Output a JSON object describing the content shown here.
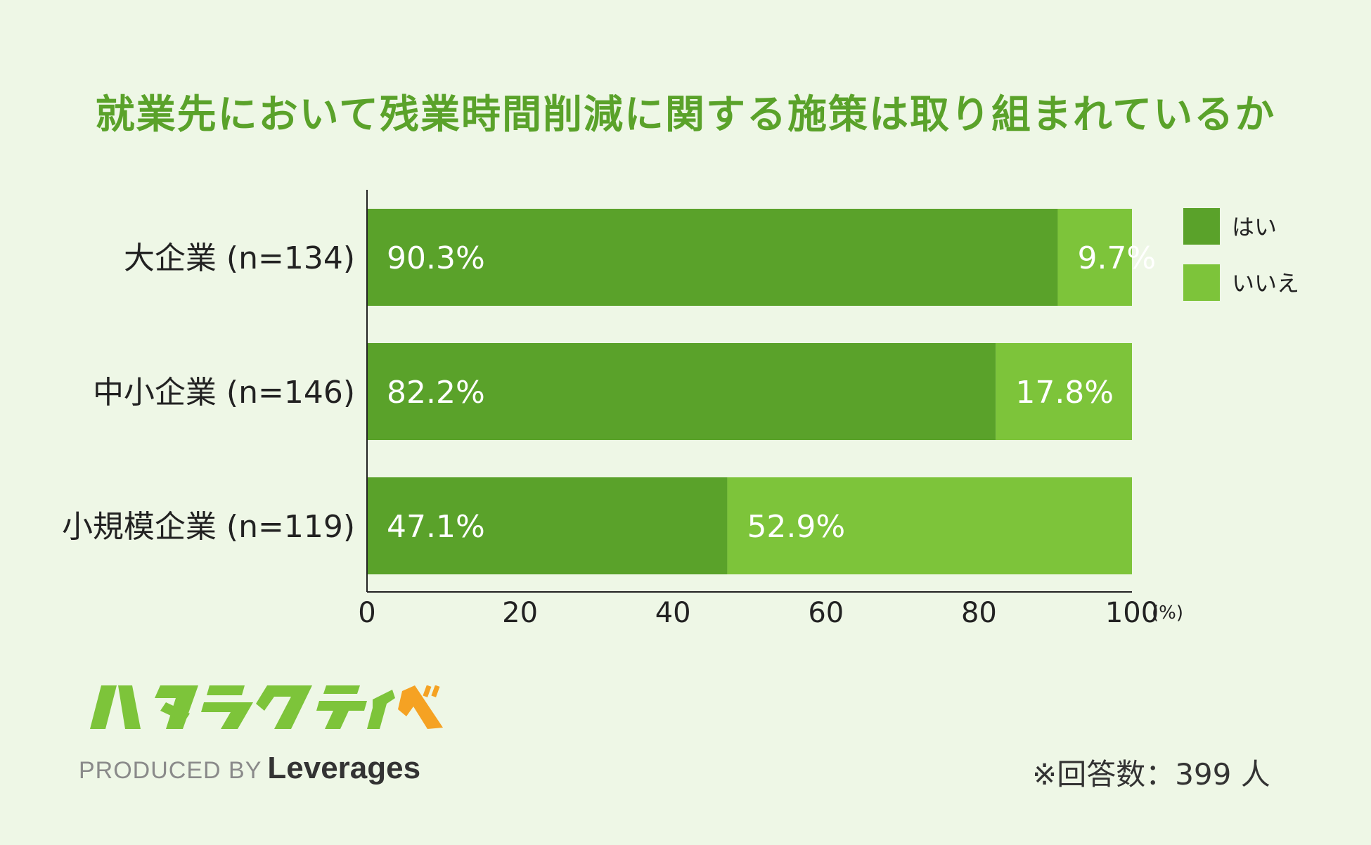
{
  "chart_data": {
    "type": "bar",
    "orientation": "horizontal",
    "stacked": true,
    "title": "就業先において残業時間削減に関する施策は取り組まれているか",
    "categories": [
      "大企業 (n=134)",
      "中小企業 (n=146)",
      "小規模企業 (n=119)"
    ],
    "series": [
      {
        "name": "はい",
        "values": [
          90.3,
          82.2,
          47.1
        ],
        "labels": [
          "90.3%",
          "82.2%",
          "47.1%"
        ],
        "color": "#5aa22a"
      },
      {
        "name": "いいえ",
        "values": [
          9.7,
          17.8,
          52.9
        ],
        "labels": [
          "9.7%",
          "17.8%",
          "52.9%"
        ],
        "color": "#7dc43a"
      }
    ],
    "xlim": [
      0,
      100
    ],
    "xticks": [
      "0",
      "20",
      "40",
      "60",
      "80",
      "100"
    ],
    "xunit": "(%)",
    "grid": false,
    "legend": "top-right"
  },
  "footnote": "※回答数：399 人",
  "logo": {
    "text": "ハタラクティブ",
    "produced_by": "PRODUCED BY",
    "brand": "Leverages"
  }
}
